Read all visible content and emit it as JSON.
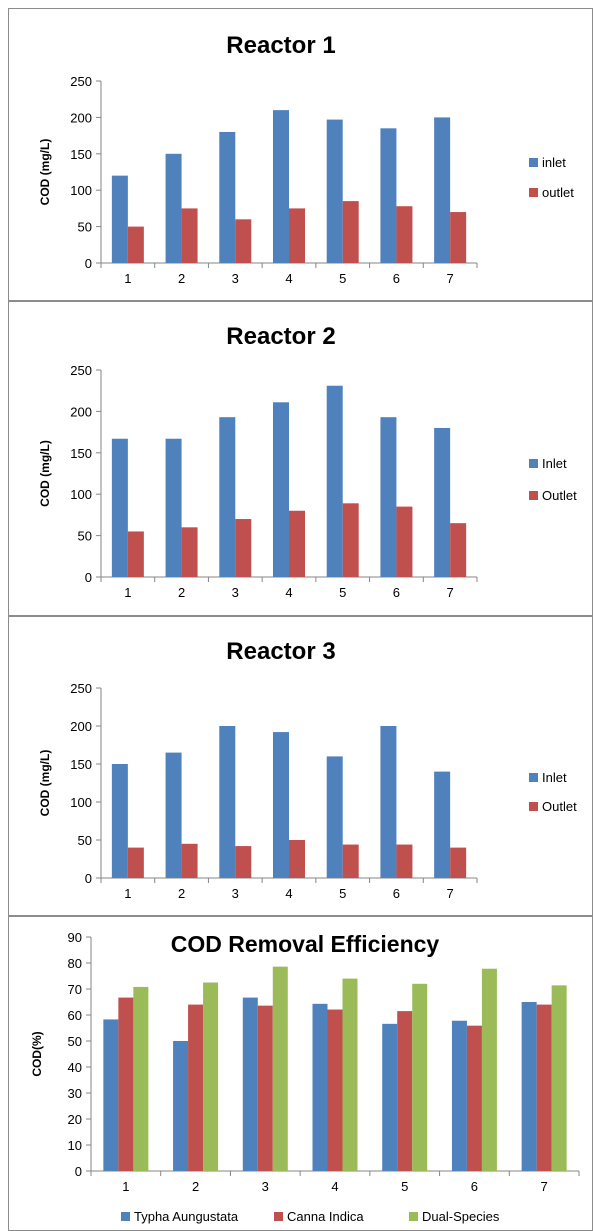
{
  "chart_data": [
    {
      "type": "bar",
      "title": "Reactor 1",
      "ylabel": "COD (mg/L)",
      "xlabel": "",
      "categories": [
        "1",
        "2",
        "3",
        "4",
        "5",
        "6",
        "7"
      ],
      "ylim": [
        0,
        250
      ],
      "yticks": [
        0,
        50,
        100,
        150,
        200,
        250
      ],
      "legend": "right",
      "series": [
        {
          "name": "inlet",
          "color": "#4F81BD",
          "values": [
            120,
            150,
            180,
            210,
            197,
            185,
            200
          ]
        },
        {
          "name": "outlet",
          "color": "#C0504D",
          "values": [
            50,
            75,
            60,
            75,
            85,
            78,
            70
          ]
        }
      ]
    },
    {
      "type": "bar",
      "title": "Reactor 2",
      "ylabel": "COD (mg/L)",
      "xlabel": "",
      "categories": [
        "1",
        "2",
        "3",
        "4",
        "5",
        "6",
        "7"
      ],
      "ylim": [
        0,
        250
      ],
      "yticks": [
        0,
        50,
        100,
        150,
        200,
        250
      ],
      "legend": "right",
      "series": [
        {
          "name": "Inlet",
          "color": "#4F81BD",
          "values": [
            167,
            167,
            193,
            211,
            231,
            193,
            180
          ]
        },
        {
          "name": "Outlet",
          "color": "#C0504D",
          "values": [
            55,
            60,
            70,
            80,
            89,
            85,
            65
          ]
        }
      ]
    },
    {
      "type": "bar",
      "title": "Reactor 3",
      "ylabel": "COD (mg/L)",
      "xlabel": "",
      "categories": [
        "1",
        "2",
        "3",
        "4",
        "5",
        "6",
        "7"
      ],
      "ylim": [
        0,
        250
      ],
      "yticks": [
        0,
        50,
        100,
        150,
        200,
        250
      ],
      "legend": "right",
      "series": [
        {
          "name": "Inlet",
          "color": "#4F81BD",
          "values": [
            150,
            165,
            200,
            192,
            160,
            200,
            140
          ]
        },
        {
          "name": "Outlet",
          "color": "#C0504D",
          "values": [
            40,
            45,
            42,
            50,
            44,
            44,
            40
          ]
        }
      ]
    },
    {
      "type": "bar",
      "title": "COD Removal Efficiency",
      "ylabel": "COD(%)",
      "xlabel": "",
      "categories": [
        "1",
        "2",
        "3",
        "4",
        "5",
        "6",
        "7"
      ],
      "ylim": [
        0,
        90
      ],
      "yticks": [
        0,
        10,
        20,
        30,
        40,
        50,
        60,
        70,
        80,
        90
      ],
      "legend": "bottom",
      "series": [
        {
          "name": "Typha Aungustata",
          "color": "#4F81BD",
          "values": [
            58.3,
            50,
            66.7,
            64.3,
            56.6,
            57.8,
            65
          ]
        },
        {
          "name": "Canna Indica",
          "color": "#C0504D",
          "values": [
            66.7,
            64,
            63.6,
            62.1,
            61.5,
            55.9,
            64
          ]
        },
        {
          "name": "Dual-Species",
          "color": "#9BBB59",
          "values": [
            70.8,
            72.5,
            78.6,
            74,
            72,
            77.8,
            71.4
          ]
        }
      ]
    }
  ]
}
